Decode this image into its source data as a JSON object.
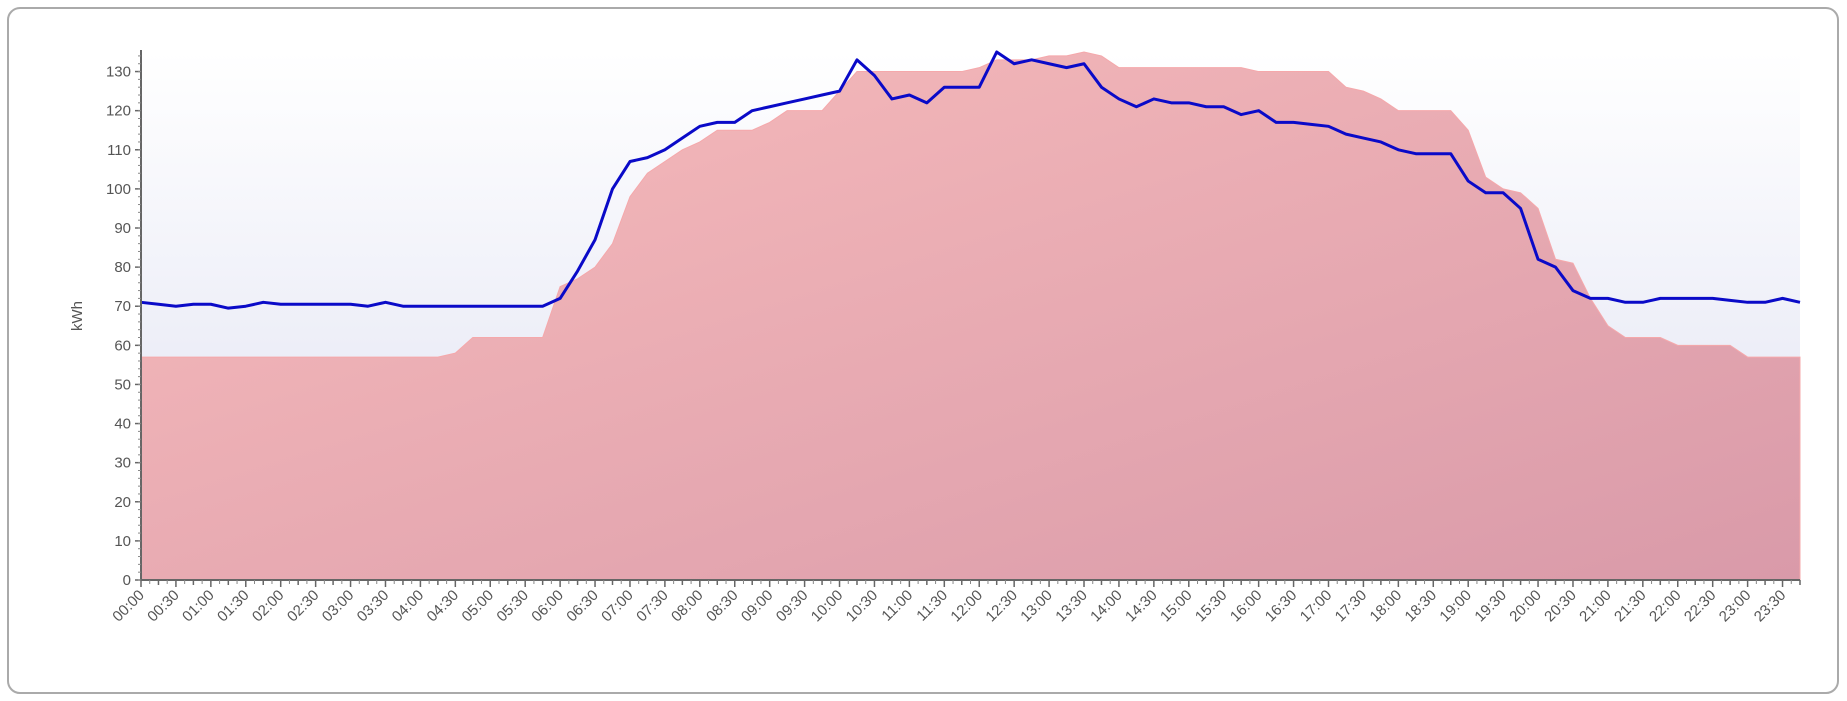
{
  "chart_data": {
    "type": "line",
    "y_label": "kWh",
    "ylim": [
      0,
      135
    ],
    "yticks": [
      0,
      10,
      20,
      30,
      40,
      50,
      60,
      70,
      80,
      90,
      100,
      110,
      120,
      130
    ],
    "categories": [
      "00:00",
      null,
      "00:30",
      null,
      "01:00",
      null,
      "01:30",
      null,
      "02:00",
      null,
      "02:30",
      null,
      "03:00",
      null,
      "03:30",
      null,
      "04:00",
      null,
      "04:30",
      null,
      "05:00",
      null,
      "05:30",
      null,
      "06:00",
      null,
      "06:30",
      null,
      "07:00",
      null,
      "07:30",
      null,
      "08:00",
      null,
      "08:30",
      null,
      "09:00",
      null,
      "09:30",
      null,
      "10:00",
      null,
      "10:30",
      null,
      "11:00",
      null,
      "11:30",
      null,
      "12:00",
      null,
      "12:30",
      null,
      "13:00",
      null,
      "13:30",
      null,
      "14:00",
      null,
      "14:30",
      null,
      "15:00",
      null,
      "15:30",
      null,
      "16:00",
      null,
      "16:30",
      null,
      "17:00",
      null,
      "17:30",
      null,
      "18:00",
      null,
      "18:30",
      null,
      "19:00",
      null,
      "19:30",
      null,
      "20:00",
      null,
      "20:30",
      null,
      "21:00",
      null,
      "21:30",
      null,
      "22:00",
      null,
      "22:30",
      null,
      "23:00",
      null,
      "23:30",
      null
    ],
    "series": [
      {
        "type": "area",
        "color": "#f5a8ab",
        "values": [
          57,
          57,
          57,
          57,
          57,
          57,
          57,
          57,
          57,
          57,
          57,
          57,
          57,
          57,
          57,
          57,
          57,
          57,
          58,
          62,
          62,
          62,
          62,
          62,
          75,
          77,
          80,
          86,
          98,
          104,
          107,
          110,
          112,
          115,
          115,
          115,
          117,
          120,
          120,
          120,
          125,
          130,
          130,
          130,
          130,
          130,
          130,
          130,
          131,
          133,
          133,
          133,
          134,
          134,
          135,
          134,
          131,
          131,
          131,
          131,
          131,
          131,
          131,
          131,
          130,
          130,
          130,
          130,
          130,
          126,
          125,
          123,
          120,
          120,
          120,
          120,
          115,
          103,
          100,
          99,
          95,
          82,
          81,
          72,
          65,
          62,
          62,
          62,
          60,
          60,
          60,
          60,
          57,
          57,
          57,
          57
        ]
      },
      {
        "type": "line",
        "color": "#0a0ac8",
        "values": [
          71,
          70.5,
          70,
          70.5,
          70.5,
          69.5,
          70,
          71,
          70.5,
          70.5,
          70.5,
          70.5,
          70.5,
          70,
          71,
          70,
          70,
          70,
          70,
          70,
          70,
          70,
          70,
          70,
          72,
          79,
          87,
          100,
          107,
          108,
          110,
          113,
          116,
          117,
          117,
          120,
          121,
          122,
          123,
          124,
          125,
          133,
          129,
          123,
          124,
          122,
          126,
          126,
          126,
          135,
          132,
          133,
          132,
          131,
          132,
          126,
          123,
          121,
          123,
          122,
          122,
          121,
          121,
          119,
          120,
          117,
          117,
          116.5,
          116,
          114,
          113,
          112,
          110,
          109,
          109,
          109,
          102,
          99,
          99,
          95,
          82,
          80,
          74,
          72,
          72,
          71,
          71,
          72,
          72,
          72,
          72,
          71.5,
          71,
          71,
          72,
          71
        ]
      }
    ]
  }
}
